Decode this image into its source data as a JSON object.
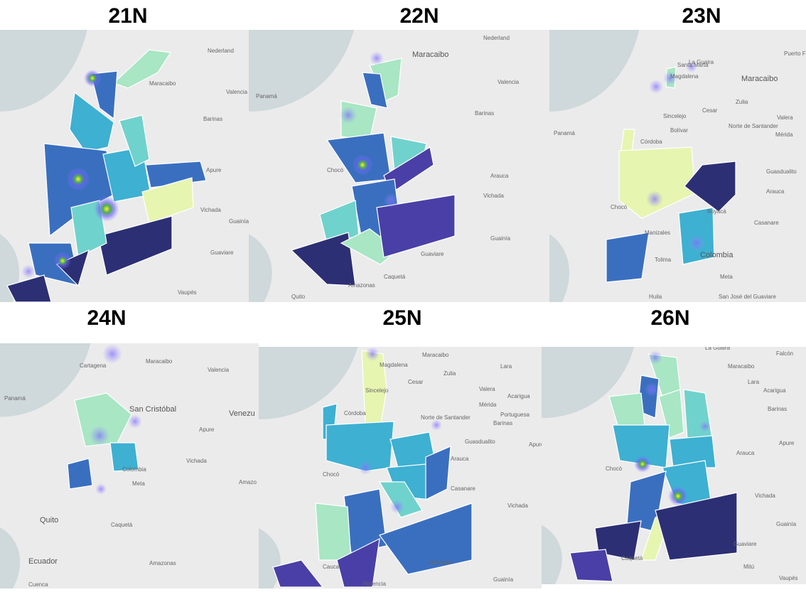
{
  "panels": [
    {
      "title": "21N",
      "labels": [
        "Nederland",
        "Maracaibo",
        "Valencia",
        "Barinas",
        "Apure",
        "Vichada",
        "Guainía",
        "Guaviare",
        "Vaupés"
      ]
    },
    {
      "title": "22N",
      "labels": [
        "Nederland",
        "Maracaibo",
        "Valencia",
        "Barinas",
        "Panamá",
        "Chocó",
        "Arauca",
        "Vichada",
        "Guainía",
        "Guaviare",
        "Caquetá",
        "Quito",
        "Amazonas"
      ]
    },
    {
      "title": "23N",
      "labels": [
        "La Guaira",
        "Puerto Fijo",
        "Santa Marta",
        "Maracaibo",
        "Magdalena",
        "Sincelejo",
        "Cesar",
        "Zulia",
        "Valera",
        "Mérida",
        "Panamá",
        "Córdoba",
        "Bolívar",
        "Norte de Santander",
        "Guasdualito",
        "Chocó",
        "Arauca",
        "Boyacá",
        "Casanare",
        "Manizales",
        "Colombia",
        "Tolima",
        "Meta",
        "Huila",
        "San José del Guaviare"
      ]
    },
    {
      "title": "24N",
      "labels": [
        "Cartagena",
        "Maracaibo",
        "Valencia",
        "Panamá",
        "San Cristóbal",
        "Venezu",
        "Apure",
        "Colombia",
        "Vichada",
        "Meta",
        "Amazo",
        "Caquetá",
        "Quito",
        "Ecuador",
        "Amazonas",
        "Cuenca"
      ]
    },
    {
      "title": "25N",
      "labels": [
        "Maracaibo",
        "Magdalena",
        "Cesar",
        "Zulia",
        "Lara",
        "Sincelejo",
        "Valera",
        "Acarigua",
        "Córdoba",
        "Mérida",
        "Portuguesa",
        "Barinas",
        "Norte de Santander",
        "Guasdualito",
        "Apure",
        "Arauca",
        "Chocó",
        "Casanare",
        "Vichada",
        "Cauca",
        "Guaviare",
        "Guainía",
        "Florencia"
      ]
    },
    {
      "title": "26N",
      "labels": [
        "La Guaira",
        "Falcón",
        "Maracaibo",
        "Lara",
        "Acarigua",
        "Barinas",
        "Apure",
        "Chocó",
        "Arauca",
        "Vichada",
        "Guainía",
        "Guaviare",
        "Mitú",
        "Caquetá",
        "Vaupés"
      ]
    }
  ]
}
